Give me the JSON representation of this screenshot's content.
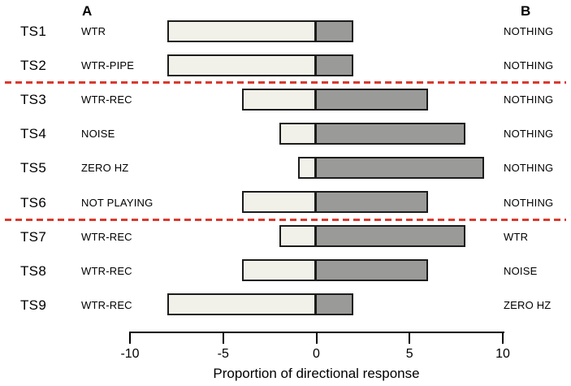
{
  "figure": {
    "column_headers": {
      "a": "A",
      "b": "B"
    }
  },
  "chart_data": {
    "type": "bar",
    "orientation": "horizontal",
    "variant": "diverging-stacked",
    "title": "",
    "xlabel": "Proportion of directional response",
    "ylabel": "",
    "xlim": [
      -10,
      10
    ],
    "x_ticks": [
      -10,
      -5,
      0,
      5,
      10
    ],
    "x_tick_labels": [
      "-10",
      "-5",
      "0",
      "5",
      "10"
    ],
    "grid": false,
    "legend": "none",
    "rows": [
      {
        "trial": "TS1",
        "stimulus_a": "WTR",
        "stimulus_b": "NOTHING",
        "toward_a": 8,
        "toward_b": 2
      },
      {
        "trial": "TS2",
        "stimulus_a": "WTR-PIPE",
        "stimulus_b": "NOTHING",
        "toward_a": 8,
        "toward_b": 2
      },
      {
        "trial": "TS3",
        "stimulus_a": "WTR-REC",
        "stimulus_b": "NOTHING",
        "toward_a": 4,
        "toward_b": 6
      },
      {
        "trial": "TS4",
        "stimulus_a": "NOISE",
        "stimulus_b": "NOTHING",
        "toward_a": 2,
        "toward_b": 8
      },
      {
        "trial": "TS5",
        "stimulus_a": "ZERO HZ",
        "stimulus_b": "NOTHING",
        "toward_a": 1,
        "toward_b": 9
      },
      {
        "trial": "TS6",
        "stimulus_a": "NOT PLAYING",
        "stimulus_b": "NOTHING",
        "toward_a": 4,
        "toward_b": 6
      },
      {
        "trial": "TS7",
        "stimulus_a": "WTR-REC",
        "stimulus_b": "WTR",
        "toward_a": 2,
        "toward_b": 8
      },
      {
        "trial": "TS8",
        "stimulus_a": "WTR-REC",
        "stimulus_b": "NOISE",
        "toward_a": 4,
        "toward_b": 6
      },
      {
        "trial": "TS9",
        "stimulus_a": "WTR-REC",
        "stimulus_b": "ZERO HZ",
        "toward_a": 8,
        "toward_b": 2
      }
    ],
    "separators_after_row_index": [
      1,
      5
    ],
    "colors": {
      "toward_a_fill": "#f2f1e9",
      "toward_b_fill": "#9a9a98",
      "bar_border": "#1c1c1c",
      "separator": "#d93a2e",
      "axis": "#000000"
    }
  }
}
